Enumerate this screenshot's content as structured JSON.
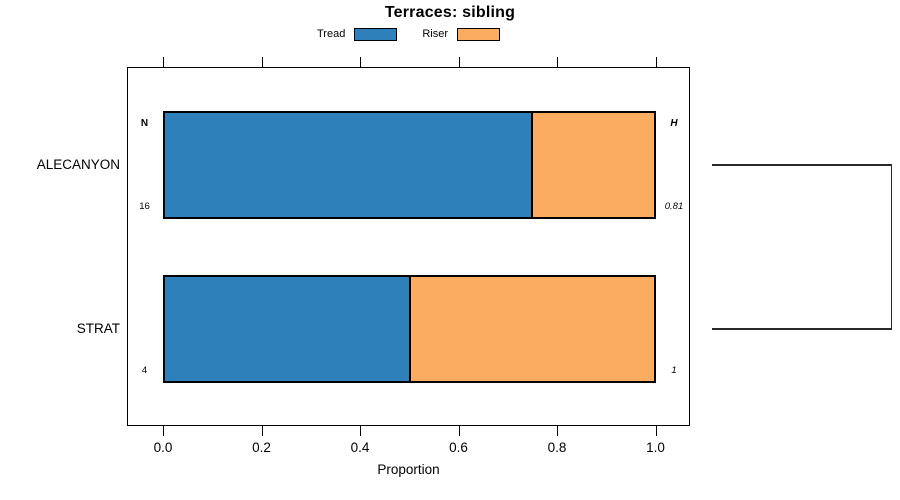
{
  "title": "Terraces: sibling",
  "chart_data": {
    "type": "bar",
    "orientation": "horizontal",
    "stacked": true,
    "title": "Terraces: sibling",
    "xlabel": "Proportion",
    "xlim": [
      0,
      1
    ],
    "x_ticks": [
      "0.0",
      "0.2",
      "0.4",
      "0.6",
      "0.8",
      "1.0"
    ],
    "x_tick_values": [
      0,
      0.2,
      0.4,
      0.6,
      0.8,
      1.0
    ],
    "grid": false,
    "legend_position": "top",
    "categories": [
      "ALECANYON",
      "STRAT"
    ],
    "series": [
      {
        "name": "Tread",
        "color": "#2d80ba",
        "values": [
          0.75,
          0.5
        ]
      },
      {
        "name": "Riser",
        "color": "#fcac61",
        "values": [
          0.25,
          0.5
        ]
      }
    ],
    "n_column": {
      "header": "N",
      "values": [
        "16",
        "4"
      ]
    },
    "h_column": {
      "header": "H",
      "values": [
        "0.81",
        "1"
      ]
    },
    "dendrogram": {
      "present": true,
      "joins": [
        [
          "ALECANYON",
          "STRAT"
        ]
      ]
    }
  }
}
